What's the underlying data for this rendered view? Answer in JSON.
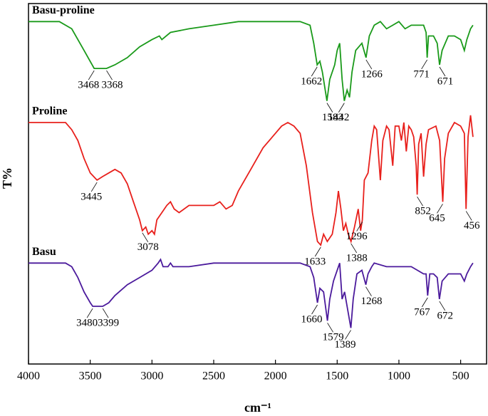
{
  "chart_data": {
    "type": "line",
    "xlabel": "cm⁻¹",
    "ylabel": "T%",
    "xlim": [
      4000,
      290
    ],
    "ylim": [
      0,
      100
    ],
    "xticks": [
      4000,
      3500,
      3000,
      2500,
      2000,
      1500,
      1000,
      500
    ],
    "series": [
      {
        "name": "Basu-proline",
        "color": "#1a9a1a",
        "x": [
          4000,
          3750,
          3650,
          3550,
          3468,
          3420,
          3368,
          3300,
          3200,
          3100,
          3000,
          2940,
          2920,
          2850,
          2700,
          2500,
          2300,
          2000,
          1800,
          1720,
          1690,
          1662,
          1640,
          1620,
          1583,
          1560,
          1520,
          1500,
          1480,
          1460,
          1442,
          1420,
          1400,
          1380,
          1350,
          1300,
          1266,
          1240,
          1200,
          1150,
          1100,
          1050,
          1000,
          950,
          900,
          850,
          800,
          780,
          771,
          760,
          720,
          690,
          671,
          650,
          600,
          550,
          500,
          470,
          450,
          420,
          400
        ],
        "values": [
          95,
          95,
          93,
          87,
          82,
          82,
          82,
          83,
          85,
          88,
          90,
          91,
          90,
          92,
          93,
          94,
          95,
          95,
          95,
          94,
          89,
          83,
          84,
          81,
          73,
          79,
          83,
          87,
          89,
          79,
          73,
          76,
          74,
          81,
          87,
          89,
          85,
          91,
          94,
          95,
          93,
          94,
          95,
          93,
          94,
          94,
          94,
          92,
          85,
          91,
          91,
          89,
          83,
          87,
          91,
          91,
          90,
          87,
          90,
          93,
          94
        ],
        "peaks": [
          3468,
          3368,
          1662,
          1583,
          1442,
          1266,
          771,
          671
        ]
      },
      {
        "name": "Proline",
        "color": "#e8201c",
        "x": [
          4000,
          3700,
          3650,
          3600,
          3550,
          3500,
          3445,
          3400,
          3350,
          3300,
          3250,
          3200,
          3150,
          3100,
          3078,
          3050,
          3030,
          3000,
          2980,
          2960,
          2920,
          2880,
          2850,
          2820,
          2780,
          2700,
          2600,
          2500,
          2450,
          2400,
          2350,
          2300,
          2200,
          2100,
          2000,
          1950,
          1900,
          1850,
          1800,
          1750,
          1700,
          1660,
          1633,
          1610,
          1580,
          1540,
          1510,
          1490,
          1470,
          1450,
          1430,
          1410,
          1388,
          1360,
          1330,
          1310,
          1296,
          1280,
          1250,
          1220,
          1200,
          1180,
          1150,
          1130,
          1100,
          1080,
          1050,
          1030,
          1000,
          980,
          960,
          940,
          920,
          900,
          880,
          860,
          852,
          840,
          820,
          800,
          780,
          760,
          700,
          670,
          645,
          630,
          600,
          550,
          500,
          470,
          456,
          440,
          420,
          400
        ],
        "values": [
          67,
          67,
          65,
          62,
          57,
          53,
          51,
          52,
          53,
          54,
          53,
          50,
          45,
          40,
          37,
          38,
          36,
          37,
          36,
          40,
          42,
          44,
          45,
          43,
          42,
          44,
          44,
          44,
          45,
          43,
          44,
          48,
          54,
          60,
          64,
          66,
          67,
          66,
          64,
          55,
          42,
          34,
          33,
          36,
          34,
          36,
          42,
          48,
          43,
          37,
          39,
          36,
          34,
          38,
          43,
          37,
          40,
          51,
          53,
          62,
          66,
          65,
          51,
          62,
          66,
          65,
          55,
          66,
          66,
          62,
          67,
          59,
          66,
          65,
          63,
          55,
          47,
          61,
          64,
          52,
          61,
          65,
          66,
          62,
          45,
          57,
          64,
          67,
          66,
          64,
          43,
          63,
          69,
          63
        ],
        "peaks": [
          3445,
          3078,
          1633,
          1388,
          1296,
          852,
          645,
          456
        ]
      },
      {
        "name": "Basu",
        "color": "#4b1a9c",
        "x": [
          4000,
          3700,
          3650,
          3600,
          3550,
          3500,
          3480,
          3430,
          3399,
          3350,
          3300,
          3200,
          3100,
          3000,
          2950,
          2930,
          2910,
          2870,
          2850,
          2830,
          2700,
          2500,
          2000,
          1800,
          1720,
          1690,
          1660,
          1640,
          1610,
          1579,
          1560,
          1530,
          1500,
          1480,
          1460,
          1440,
          1420,
          1389,
          1370,
          1340,
          1300,
          1268,
          1250,
          1220,
          1200,
          1100,
          1000,
          900,
          850,
          800,
          780,
          767,
          750,
          720,
          690,
          672,
          650,
          600,
          550,
          500,
          470,
          450,
          420,
          400
        ],
        "values": [
          28,
          28,
          27,
          24,
          20,
          17,
          16,
          16,
          16,
          17,
          19,
          22,
          24,
          26,
          28,
          29,
          27,
          27,
          28,
          27,
          27,
          28,
          28,
          28,
          27,
          24,
          17,
          21,
          20,
          12,
          18,
          23,
          26,
          28,
          18,
          20,
          16,
          10,
          18,
          25,
          26,
          22,
          25,
          27,
          28,
          27,
          27,
          27,
          26,
          25,
          25,
          19,
          25,
          25,
          24,
          18,
          23,
          25,
          25,
          25,
          23,
          25,
          27,
          28
        ],
        "peaks": [
          3480,
          3399,
          1660,
          1579,
          1389,
          1268,
          767,
          672
        ]
      }
    ]
  }
}
